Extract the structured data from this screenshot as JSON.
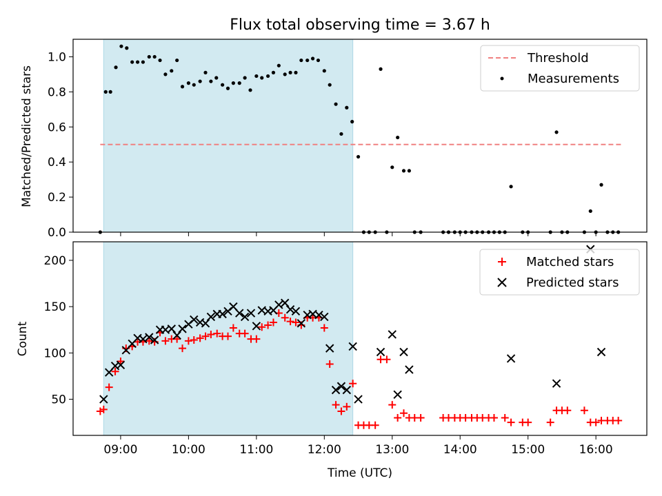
{
  "chart_data": {
    "title": "Flux total observing time = 3.67 h",
    "xlabel": "Time (UTC)",
    "x_unit": "hours (UTC)",
    "xlim": [
      8.3,
      16.75
    ],
    "x_ticks": [
      9,
      10,
      11,
      12,
      13,
      14,
      15,
      16
    ],
    "x_tick_labels": [
      "09:00",
      "10:00",
      "11:00",
      "12:00",
      "13:00",
      "14:00",
      "15:00",
      "16:00"
    ],
    "shaded_span": [
      8.75,
      12.42
    ],
    "shaded_color": "#add8e6",
    "panels": [
      {
        "type": "scatter",
        "ylabel": "Matched/Predicted stars",
        "ylim": [
          0,
          1.1
        ],
        "y_ticks": [
          0.0,
          0.2,
          0.4,
          0.6,
          0.8,
          1.0
        ],
        "y_tick_labels": [
          "0.0",
          "0.2",
          "0.4",
          "0.6",
          "0.8",
          "1.0"
        ],
        "legend_position": "top-right",
        "threshold": {
          "name": "Threshold",
          "y": 0.5,
          "x_range": [
            8.7,
            16.4
          ],
          "color": "#f08080",
          "style": "dashed"
        },
        "series": [
          {
            "name": "Measurements",
            "color": "#000000",
            "marker": "dot",
            "points": [
              [
                8.7,
                0.0
              ],
              [
                8.78,
                0.8
              ],
              [
                8.85,
                0.8
              ],
              [
                8.93,
                0.94
              ],
              [
                9.01,
                1.06
              ],
              [
                9.09,
                1.05
              ],
              [
                9.17,
                0.97
              ],
              [
                9.25,
                0.97
              ],
              [
                9.33,
                0.97
              ],
              [
                9.42,
                1.0
              ],
              [
                9.5,
                1.0
              ],
              [
                9.58,
                0.98
              ],
              [
                9.66,
                0.9
              ],
              [
                9.75,
                0.92
              ],
              [
                9.83,
                0.98
              ],
              [
                9.91,
                0.83
              ],
              [
                10.0,
                0.85
              ],
              [
                10.08,
                0.84
              ],
              [
                10.17,
                0.86
              ],
              [
                10.25,
                0.91
              ],
              [
                10.33,
                0.86
              ],
              [
                10.41,
                0.88
              ],
              [
                10.5,
                0.84
              ],
              [
                10.58,
                0.82
              ],
              [
                10.66,
                0.85
              ],
              [
                10.75,
                0.85
              ],
              [
                10.83,
                0.88
              ],
              [
                10.91,
                0.81
              ],
              [
                11.0,
                0.89
              ],
              [
                11.08,
                0.88
              ],
              [
                11.17,
                0.89
              ],
              [
                11.25,
                0.91
              ],
              [
                11.33,
                0.95
              ],
              [
                11.42,
                0.9
              ],
              [
                11.5,
                0.91
              ],
              [
                11.58,
                0.91
              ],
              [
                11.66,
                0.98
              ],
              [
                11.75,
                0.98
              ],
              [
                11.83,
                0.99
              ],
              [
                11.91,
                0.98
              ],
              [
                12.0,
                0.92
              ],
              [
                12.08,
                0.84
              ],
              [
                12.17,
                0.73
              ],
              [
                12.25,
                0.56
              ],
              [
                12.33,
                0.71
              ],
              [
                12.41,
                0.63
              ],
              [
                12.5,
                0.43
              ],
              [
                12.58,
                0.0
              ],
              [
                12.66,
                0.0
              ],
              [
                12.75,
                0.0
              ],
              [
                12.83,
                0.93
              ],
              [
                12.92,
                0.0
              ],
              [
                13.0,
                0.37
              ],
              [
                13.08,
                0.54
              ],
              [
                13.17,
                0.35
              ],
              [
                13.25,
                0.35
              ],
              [
                13.33,
                0.0
              ],
              [
                13.42,
                0.0
              ],
              [
                13.75,
                0.0
              ],
              [
                13.83,
                0.0
              ],
              [
                13.92,
                0.0
              ],
              [
                14.0,
                0.0
              ],
              [
                14.08,
                0.0
              ],
              [
                14.17,
                0.0
              ],
              [
                14.25,
                0.0
              ],
              [
                14.33,
                0.0
              ],
              [
                14.42,
                0.0
              ],
              [
                14.5,
                0.0
              ],
              [
                14.58,
                0.0
              ],
              [
                14.66,
                0.0
              ],
              [
                14.75,
                0.26
              ],
              [
                14.92,
                0.0
              ],
              [
                15.0,
                0.0
              ],
              [
                15.33,
                0.0
              ],
              [
                15.42,
                0.57
              ],
              [
                15.5,
                0.0
              ],
              [
                15.58,
                0.0
              ],
              [
                15.83,
                0.0
              ],
              [
                15.92,
                0.12
              ],
              [
                16.0,
                0.0
              ],
              [
                16.08,
                0.27
              ],
              [
                16.17,
                0.0
              ],
              [
                16.25,
                0.0
              ],
              [
                16.33,
                0.0
              ]
            ]
          }
        ]
      },
      {
        "type": "scatter",
        "ylabel": "Count",
        "ylim": [
          11,
          220
        ],
        "y_ticks": [
          50,
          100,
          150,
          200
        ],
        "y_tick_labels": [
          "50",
          "100",
          "150",
          "200"
        ],
        "legend_position": "top-right",
        "series": [
          {
            "name": "Matched stars",
            "color": "#ff0000",
            "marker": "plus",
            "points": [
              [
                8.7,
                37
              ],
              [
                8.75,
                39
              ],
              [
                8.83,
                63
              ],
              [
                8.92,
                80
              ],
              [
                9.0,
                91
              ],
              [
                9.08,
                105
              ],
              [
                9.17,
                107
              ],
              [
                9.25,
                112
              ],
              [
                9.33,
                112
              ],
              [
                9.42,
                113
              ],
              [
                9.5,
                112
              ],
              [
                9.58,
                122
              ],
              [
                9.66,
                113
              ],
              [
                9.75,
                115
              ],
              [
                9.83,
                115
              ],
              [
                9.91,
                105
              ],
              [
                10.0,
                113
              ],
              [
                10.08,
                114
              ],
              [
                10.17,
                116
              ],
              [
                10.25,
                118
              ],
              [
                10.33,
                120
              ],
              [
                10.42,
                121
              ],
              [
                10.5,
                118
              ],
              [
                10.58,
                118
              ],
              [
                10.66,
                127
              ],
              [
                10.75,
                121
              ],
              [
                10.83,
                121
              ],
              [
                10.92,
                115
              ],
              [
                11.0,
                115
              ],
              [
                11.08,
                128
              ],
              [
                11.17,
                130
              ],
              [
                11.25,
                133
              ],
              [
                11.33,
                143
              ],
              [
                11.42,
                138
              ],
              [
                11.5,
                134
              ],
              [
                11.58,
                133
              ],
              [
                11.66,
                130
              ],
              [
                11.75,
                138
              ],
              [
                11.83,
                138
              ],
              [
                11.92,
                138
              ],
              [
                12.0,
                127
              ],
              [
                12.08,
                88
              ],
              [
                12.17,
                44
              ],
              [
                12.25,
                37
              ],
              [
                12.33,
                42
              ],
              [
                12.42,
                67
              ],
              [
                12.5,
                22
              ],
              [
                12.58,
                22
              ],
              [
                12.66,
                22
              ],
              [
                12.75,
                22
              ],
              [
                12.83,
                93
              ],
              [
                12.92,
                93
              ],
              [
                13.0,
                44
              ],
              [
                13.08,
                30
              ],
              [
                13.17,
                35
              ],
              [
                13.25,
                30
              ],
              [
                13.33,
                30
              ],
              [
                13.42,
                30
              ],
              [
                13.75,
                30
              ],
              [
                13.83,
                30
              ],
              [
                13.92,
                30
              ],
              [
                14.0,
                30
              ],
              [
                14.08,
                30
              ],
              [
                14.17,
                30
              ],
              [
                14.25,
                30
              ],
              [
                14.33,
                30
              ],
              [
                14.42,
                30
              ],
              [
                14.5,
                30
              ],
              [
                14.66,
                30
              ],
              [
                14.75,
                25
              ],
              [
                14.92,
                25
              ],
              [
                15.0,
                25
              ],
              [
                15.33,
                25
              ],
              [
                15.42,
                38
              ],
              [
                15.5,
                38
              ],
              [
                15.58,
                38
              ],
              [
                15.83,
                38
              ],
              [
                15.92,
                25
              ],
              [
                16.0,
                25
              ],
              [
                16.08,
                27
              ],
              [
                16.17,
                27
              ],
              [
                16.25,
                27
              ],
              [
                16.33,
                27
              ]
            ]
          },
          {
            "name": "Predicted stars",
            "color": "#000000",
            "marker": "x",
            "points": [
              [
                8.75,
                50
              ],
              [
                8.83,
                79
              ],
              [
                8.92,
                86
              ],
              [
                9.0,
                87
              ],
              [
                9.08,
                103
              ],
              [
                9.17,
                110
              ],
              [
                9.25,
                116
              ],
              [
                9.33,
                115
              ],
              [
                9.42,
                117
              ],
              [
                9.5,
                114
              ],
              [
                9.58,
                125
              ],
              [
                9.66,
                125
              ],
              [
                9.75,
                126
              ],
              [
                9.83,
                119
              ],
              [
                9.91,
                126
              ],
              [
                10.0,
                131
              ],
              [
                10.08,
                136
              ],
              [
                10.17,
                133
              ],
              [
                10.25,
                132
              ],
              [
                10.33,
                139
              ],
              [
                10.42,
                142
              ],
              [
                10.5,
                142
              ],
              [
                10.58,
                145
              ],
              [
                10.66,
                150
              ],
              [
                10.75,
                143
              ],
              [
                10.83,
                139
              ],
              [
                10.92,
                143
              ],
              [
                11.0,
                129
              ],
              [
                11.08,
                146
              ],
              [
                11.17,
                145
              ],
              [
                11.25,
                146
              ],
              [
                11.33,
                152
              ],
              [
                11.42,
                154
              ],
              [
                11.5,
                147
              ],
              [
                11.58,
                145
              ],
              [
                11.66,
                132
              ],
              [
                11.75,
                141
              ],
              [
                11.83,
                142
              ],
              [
                11.92,
                141
              ],
              [
                12.0,
                139
              ],
              [
                12.08,
                105
              ],
              [
                12.17,
                60
              ],
              [
                12.25,
                64
              ],
              [
                12.33,
                60
              ],
              [
                12.42,
                107
              ],
              [
                12.5,
                50
              ],
              [
                12.83,
                101
              ],
              [
                13.0,
                120
              ],
              [
                13.08,
                55
              ],
              [
                13.17,
                101
              ],
              [
                13.25,
                82
              ],
              [
                14.75,
                94
              ],
              [
                15.42,
                67
              ],
              [
                15.92,
                212
              ],
              [
                16.08,
                101
              ]
            ]
          }
        ]
      }
    ]
  }
}
